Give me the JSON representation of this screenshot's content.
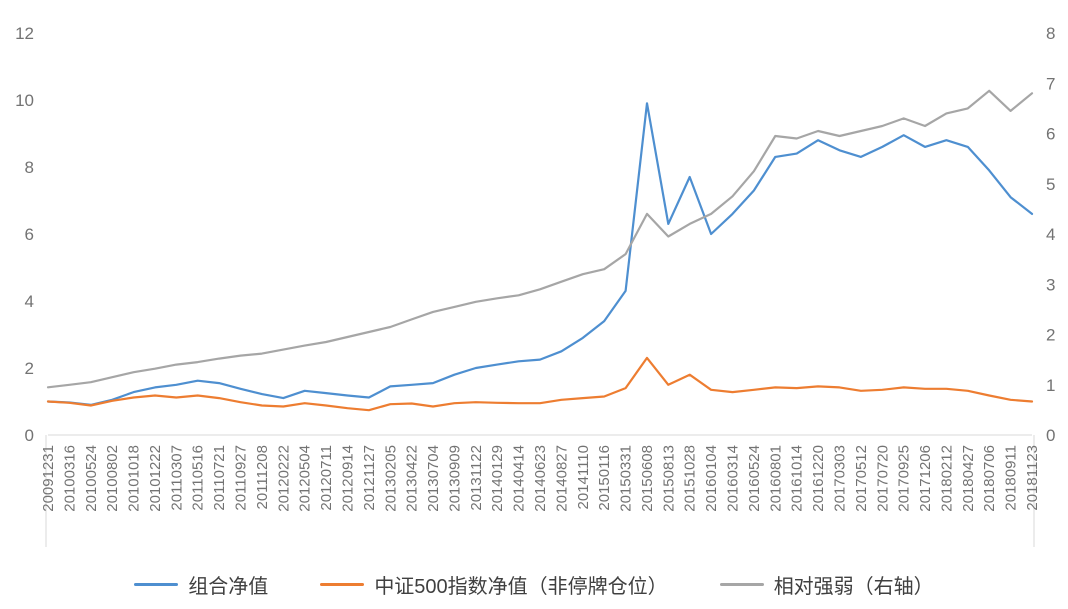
{
  "page": {
    "background": "#ffffff"
  },
  "chart_data": {
    "type": "line",
    "title": "",
    "xlabel": "",
    "ylabel": "",
    "grid": false,
    "legend_position": "bottom",
    "left_axis": {
      "min": 0,
      "max": 12,
      "ticks": [
        0,
        2,
        4,
        6,
        8,
        10,
        12
      ]
    },
    "right_axis": {
      "min": 0,
      "max": 8,
      "ticks": [
        0,
        1,
        2,
        3,
        4,
        5,
        6,
        7,
        8
      ]
    },
    "categories": [
      "20091231",
      "20100316",
      "20100524",
      "20100802",
      "20101018",
      "20101222",
      "20110307",
      "20110516",
      "20110721",
      "20110927",
      "20111208",
      "20120222",
      "20120504",
      "20120711",
      "20120914",
      "20121127",
      "20130205",
      "20130422",
      "20130704",
      "20130909",
      "20131122",
      "20140129",
      "20140414",
      "20140623",
      "20140827",
      "20141110",
      "20150116",
      "20150331",
      "20150608",
      "20150813",
      "20151028",
      "20160104",
      "20160314",
      "20160524",
      "20160801",
      "20161014",
      "20161220",
      "20170303",
      "20170512",
      "20170720",
      "20170925",
      "20171206",
      "20180212",
      "20180427",
      "20180706",
      "20180911",
      "20181123"
    ],
    "series": [
      {
        "name": "组合净值",
        "axis": "left",
        "color": "#4E8FD0",
        "values": [
          1.0,
          0.97,
          0.9,
          1.05,
          1.28,
          1.42,
          1.5,
          1.62,
          1.55,
          1.38,
          1.22,
          1.1,
          1.32,
          1.25,
          1.18,
          1.12,
          1.45,
          1.5,
          1.55,
          1.8,
          2.0,
          2.1,
          2.2,
          2.25,
          2.5,
          2.9,
          3.4,
          4.3,
          9.9,
          6.3,
          7.7,
          6.0,
          6.6,
          7.3,
          8.3,
          8.4,
          8.8,
          8.5,
          8.3,
          8.6,
          8.95,
          8.6,
          8.8,
          8.6,
          7.9,
          7.1,
          6.6
        ]
      },
      {
        "name": "中证500指数净值（非停牌仓位）",
        "axis": "left",
        "color": "#ED7D31",
        "values": [
          1.0,
          0.96,
          0.88,
          1.02,
          1.12,
          1.18,
          1.12,
          1.18,
          1.1,
          0.98,
          0.88,
          0.85,
          0.95,
          0.88,
          0.8,
          0.74,
          0.92,
          0.94,
          0.85,
          0.95,
          0.98,
          0.96,
          0.95,
          0.95,
          1.05,
          1.1,
          1.15,
          1.4,
          2.3,
          1.5,
          1.8,
          1.35,
          1.28,
          1.35,
          1.42,
          1.4,
          1.45,
          1.42,
          1.32,
          1.35,
          1.42,
          1.38,
          1.38,
          1.32,
          1.18,
          1.05,
          1.0
        ]
      },
      {
        "name": "相对强弱（右轴）",
        "axis": "right",
        "color": "#A6A6A6",
        "values": [
          0.95,
          1.0,
          1.05,
          1.15,
          1.25,
          1.32,
          1.4,
          1.45,
          1.52,
          1.58,
          1.62,
          1.7,
          1.78,
          1.85,
          1.95,
          2.05,
          2.15,
          2.3,
          2.45,
          2.55,
          2.65,
          2.72,
          2.78,
          2.9,
          3.05,
          3.2,
          3.3,
          3.6,
          4.4,
          3.95,
          4.2,
          4.4,
          4.75,
          5.25,
          5.95,
          5.9,
          6.05,
          5.95,
          6.05,
          6.15,
          6.3,
          6.15,
          6.4,
          6.5,
          6.85,
          6.45,
          6.8
        ]
      }
    ],
    "axis_line_color": "#d9d9d9",
    "tick_label_color": "#737373"
  }
}
